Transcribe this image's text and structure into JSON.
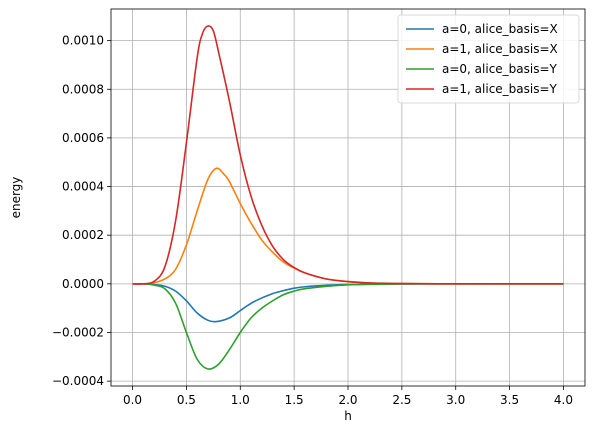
{
  "chart_data": {
    "type": "line",
    "title": "",
    "xlabel": "h",
    "ylabel": "energy",
    "xlim": [
      -0.2,
      4.2
    ],
    "ylim": [
      -0.00042,
      0.00113
    ],
    "xticks": [
      0.0,
      0.5,
      1.0,
      1.5,
      2.0,
      2.5,
      3.0,
      3.5,
      4.0
    ],
    "xtick_labels": [
      "0.0",
      "0.5",
      "1.0",
      "1.5",
      "2.0",
      "2.5",
      "3.0",
      "3.5",
      "4.0"
    ],
    "yticks": [
      -0.0004,
      -0.0002,
      0.0,
      0.0002,
      0.0004,
      0.0006,
      0.0008,
      0.001
    ],
    "ytick_labels": [
      "−0.0004",
      "−0.0002",
      "0.0000",
      "0.0002",
      "0.0004",
      "0.0006",
      "0.0008",
      "0.0010"
    ],
    "grid": true,
    "legend_position": "top-right",
    "series": [
      {
        "name": "a=0, alice_basis=X",
        "color": "#1f77b4",
        "x": [
          0.0,
          0.1,
          0.2,
          0.3,
          0.4,
          0.5,
          0.6,
          0.7,
          0.78,
          0.9,
          1.0,
          1.1,
          1.2,
          1.3,
          1.4,
          1.5,
          1.6,
          1.8,
          2.0,
          2.2,
          2.5,
          3.0,
          3.5,
          4.0
        ],
        "y": [
          0.0,
          0.0,
          -3e-06,
          -1e-05,
          -3e-05,
          -7e-05,
          -0.00012,
          -0.00015,
          -0.000155,
          -0.00014,
          -0.00011,
          -8e-05,
          -5.8e-05,
          -4e-05,
          -2.8e-05,
          -1.8e-05,
          -1.2e-05,
          -6e-06,
          -3e-06,
          -1.5e-06,
          -5e-07,
          0.0,
          0.0,
          0.0
        ]
      },
      {
        "name": "a=1, alice_basis=X",
        "color": "#ff7f0e",
        "x": [
          0.0,
          0.1,
          0.2,
          0.3,
          0.4,
          0.5,
          0.6,
          0.7,
          0.78,
          0.85,
          0.9,
          1.0,
          1.1,
          1.2,
          1.3,
          1.4,
          1.5,
          1.6,
          1.8,
          2.0,
          2.2,
          2.5,
          3.0,
          3.5,
          4.0
        ],
        "y": [
          0.0,
          0.0,
          5e-06,
          2e-05,
          6e-05,
          0.00016,
          0.0003,
          0.00043,
          0.000475,
          0.00045,
          0.00042,
          0.00033,
          0.00025,
          0.00018,
          0.00013,
          9e-05,
          6.5e-05,
          4.5e-05,
          2e-05,
          1e-05,
          4e-06,
          1e-06,
          0.0,
          0.0,
          0.0
        ]
      },
      {
        "name": "a=0, alice_basis=Y",
        "color": "#2ca02c",
        "x": [
          0.0,
          0.1,
          0.2,
          0.3,
          0.4,
          0.5,
          0.6,
          0.7,
          0.8,
          0.9,
          1.0,
          1.1,
          1.2,
          1.3,
          1.4,
          1.5,
          1.6,
          1.8,
          2.0,
          2.2,
          2.5,
          3.0,
          3.5,
          4.0
        ],
        "y": [
          0.0,
          0.0,
          -5e-06,
          -2e-05,
          -8e-05,
          -0.0002,
          -0.00031,
          -0.00035,
          -0.00033,
          -0.00027,
          -0.0002,
          -0.00014,
          -0.0001,
          -7e-05,
          -4.5e-05,
          -3e-05,
          -2e-05,
          -1e-05,
          -4e-06,
          -2e-06,
          -5e-07,
          0.0,
          0.0,
          0.0
        ]
      },
      {
        "name": "a=1, alice_basis=Y",
        "color": "#d62728",
        "x": [
          0.0,
          0.1,
          0.2,
          0.3,
          0.4,
          0.5,
          0.6,
          0.65,
          0.7,
          0.75,
          0.8,
          0.9,
          1.0,
          1.1,
          1.2,
          1.3,
          1.4,
          1.5,
          1.6,
          1.8,
          2.0,
          2.2,
          2.5,
          3.0,
          3.5,
          4.0
        ],
        "y": [
          0.0,
          0.0,
          1e-05,
          7e-05,
          0.00026,
          0.00058,
          0.00093,
          0.00103,
          0.00106,
          0.00104,
          0.00095,
          0.00075,
          0.00053,
          0.00036,
          0.00024,
          0.000155,
          0.0001,
          6.7e-05,
          4.5e-05,
          2e-05,
          9e-06,
          4e-06,
          1e-06,
          0.0,
          0.0,
          0.0
        ]
      }
    ]
  }
}
